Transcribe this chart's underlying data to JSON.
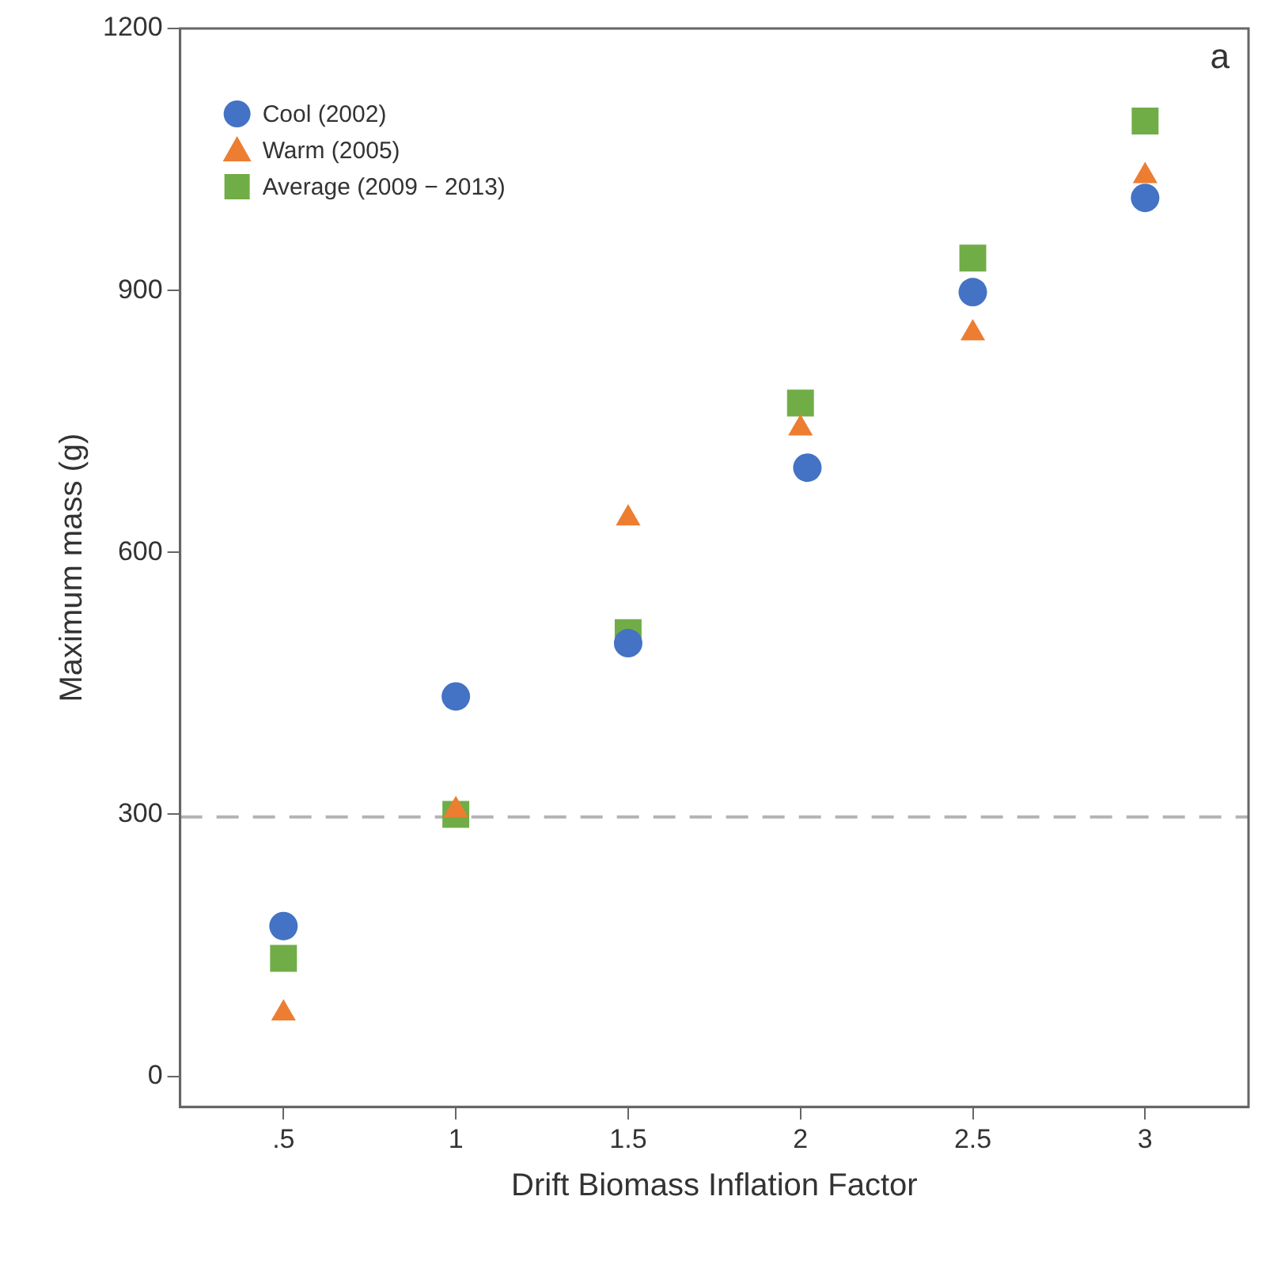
{
  "chart_data": {
    "type": "scatter",
    "xlabel": "Drift Biomass Inflation Factor",
    "ylabel": "Maximum mass (g)",
    "xlim": [
      0.2,
      3.3
    ],
    "ylim": [
      -35,
      1200
    ],
    "xticks": [
      {
        "value": 0.5,
        "label": ".5"
      },
      1,
      1.5,
      2,
      2.5,
      3
    ],
    "yticks": [
      0,
      300,
      600,
      900,
      1200
    ],
    "grid": false,
    "legend": "top left",
    "annotations": [
      "a"
    ],
    "ref_lines": [
      {
        "axis": "y",
        "value": 297,
        "color": "#b3b3b3",
        "line_style": "dashed"
      }
    ],
    "series": [
      {
        "name": "Cool (2002)",
        "color": "#4472c4",
        "marker": "circle",
        "x": [
          0.5,
          1,
          1.5,
          2.02,
          2.5,
          3
        ],
        "values": [
          172,
          435,
          496,
          697,
          898,
          1006
        ]
      },
      {
        "name": "Warm (2005)",
        "color": "#ed7d31",
        "marker": "triangle",
        "x": [
          0.5,
          1,
          1.5,
          2,
          2.5,
          3
        ],
        "values": [
          72,
          305,
          639,
          742,
          851,
          1031
        ]
      },
      {
        "name": "Average (2009 − 2013)",
        "color": "#70ad47",
        "marker": "square",
        "x": [
          0.5,
          1,
          1.5,
          2,
          2.5,
          3
        ],
        "values": [
          135,
          300,
          508,
          771,
          937,
          1094
        ]
      }
    ]
  }
}
